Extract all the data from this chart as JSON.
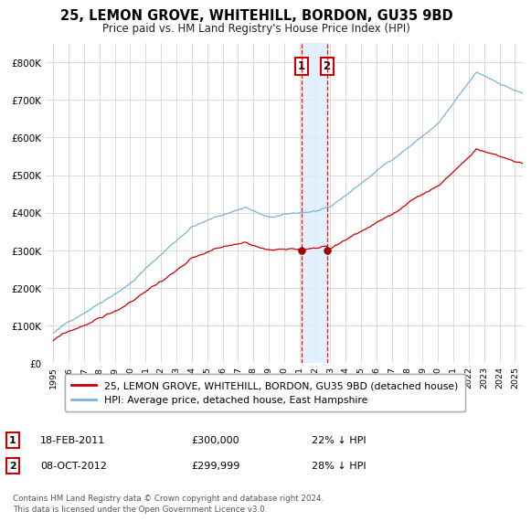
{
  "title": "25, LEMON GROVE, WHITEHILL, BORDON, GU35 9BD",
  "subtitle": "Price paid vs. HM Land Registry's House Price Index (HPI)",
  "legend_line1": "25, LEMON GROVE, WHITEHILL, BORDON, GU35 9BD (detached house)",
  "legend_line2": "HPI: Average price, detached house, East Hampshire",
  "footer": "Contains HM Land Registry data © Crown copyright and database right 2024.\nThis data is licensed under the Open Government Licence v3.0.",
  "table_rows": [
    {
      "num": "1",
      "date": "18-FEB-2011",
      "price": "£300,000",
      "hpi": "22% ↓ HPI"
    },
    {
      "num": "2",
      "date": "08-OCT-2012",
      "price": "£299,999",
      "hpi": "28% ↓ HPI"
    }
  ],
  "sale1_year": 2011.13,
  "sale1_price": 300000,
  "sale2_year": 2012.77,
  "sale2_price": 299999,
  "hpi_color": "#7ab4d8",
  "price_color": "#cc0000",
  "sale_dot_color": "#aa0000",
  "vband_color": "#ddeeff",
  "vline_color": "#cc0000",
  "grid_color": "#cccccc",
  "background_color": "#ffffff",
  "ylim": [
    0,
    850000
  ],
  "yticks": [
    0,
    100000,
    200000,
    300000,
    400000,
    500000,
    600000,
    700000,
    800000
  ],
  "xlim_start": 1994.5,
  "xlim_end": 2025.5
}
